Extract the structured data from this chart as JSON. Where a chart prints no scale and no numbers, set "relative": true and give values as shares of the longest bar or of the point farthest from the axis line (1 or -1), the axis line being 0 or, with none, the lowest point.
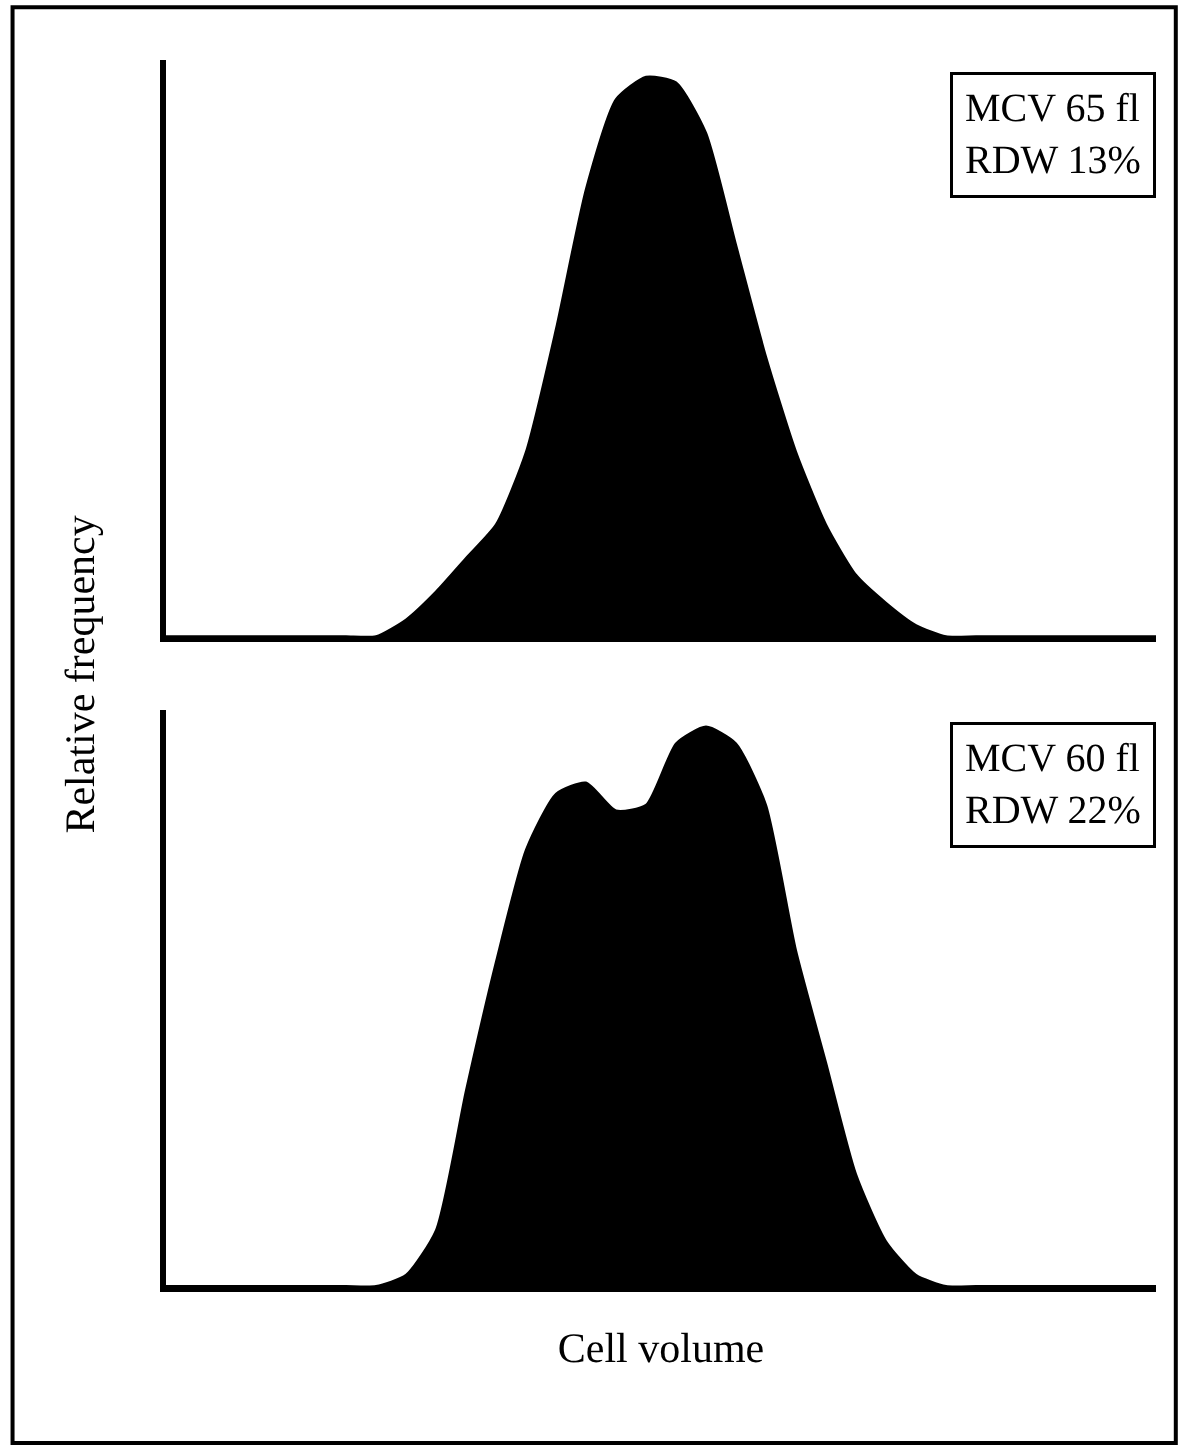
{
  "chart_data": [
    {
      "type": "area",
      "relative": true,
      "ylabel": "Relative frequency",
      "annotations": [
        "MCV 65 fl\nRDW 13%"
      ],
      "categories": [
        null,
        null,
        null,
        null,
        null,
        null,
        null,
        null,
        null,
        null,
        null,
        null,
        null,
        null,
        null,
        null,
        null,
        null,
        null,
        null,
        null,
        null,
        null,
        null,
        null,
        null,
        null,
        null,
        null,
        null,
        null,
        null,
        null,
        null
      ],
      "series": [
        {
          "color": "#000000",
          "values": [
            0,
            0,
            0,
            0,
            0,
            0,
            0,
            0,
            0.03,
            0.08,
            0.14,
            0.2,
            0.33,
            0.55,
            0.8,
            0.96,
            1.0,
            0.99,
            0.9,
            0.7,
            0.5,
            0.33,
            0.2,
            0.11,
            0.06,
            0.02,
            0,
            0,
            0,
            0,
            0,
            0,
            0,
            0
          ]
        }
      ],
      "tick_labels": false
    },
    {
      "type": "area",
      "relative": true,
      "xlabel": "Cell volume",
      "annotations": [
        "MCV 60 fl\nRDW 22%"
      ],
      "categories": [
        null,
        null,
        null,
        null,
        null,
        null,
        null,
        null,
        null,
        null,
        null,
        null,
        null,
        null,
        null,
        null,
        null,
        null,
        null,
        null,
        null,
        null,
        null,
        null,
        null,
        null,
        null,
        null,
        null,
        null,
        null,
        null,
        null,
        null
      ],
      "series": [
        {
          "color": "#000000",
          "values": [
            0,
            0,
            0,
            0,
            0,
            0,
            0,
            0,
            0.02,
            0.1,
            0.35,
            0.58,
            0.78,
            0.88,
            0.9,
            0.85,
            0.86,
            0.97,
            1.0,
            0.97,
            0.86,
            0.6,
            0.4,
            0.2,
            0.08,
            0.02,
            0,
            0,
            0,
            0,
            0,
            0,
            0,
            0
          ]
        }
      ],
      "tick_labels": false
    }
  ]
}
